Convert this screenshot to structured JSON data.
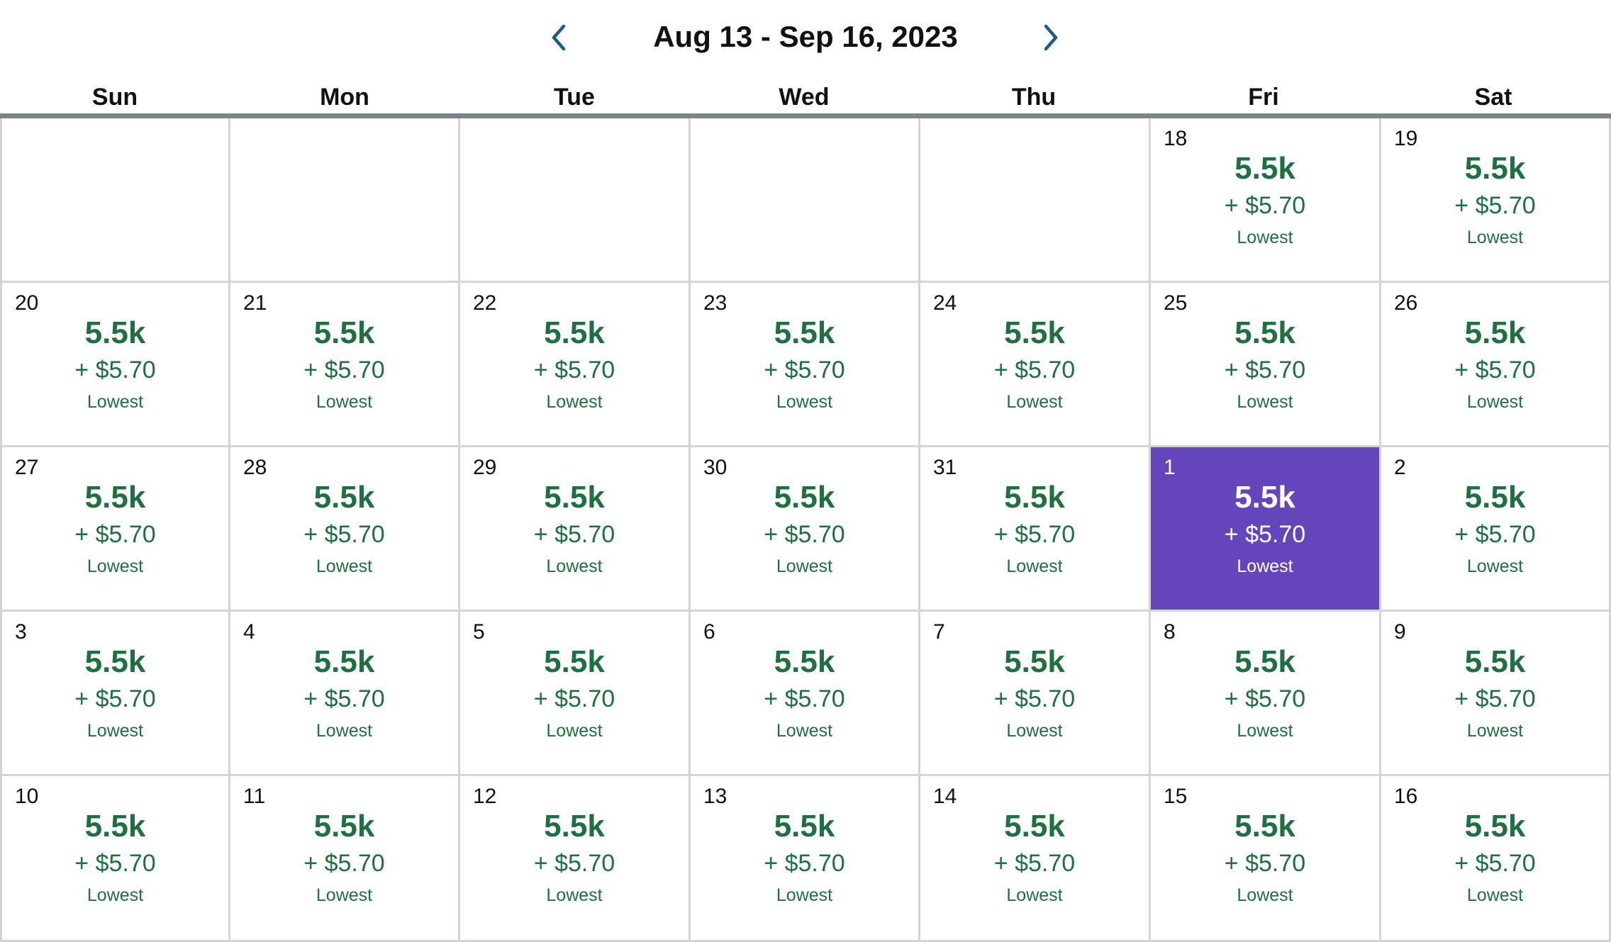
{
  "header": {
    "title": "Aug 13 - Sep 16, 2023",
    "prev_icon": "chevron-left-icon",
    "next_icon": "chevron-right-icon"
  },
  "weekdays": [
    "Sun",
    "Mon",
    "Tue",
    "Wed",
    "Thu",
    "Fri",
    "Sat"
  ],
  "colors": {
    "accent_blue": "#1a5f80",
    "price_green": "#1f7040",
    "selected_purple": "#6545bb",
    "divider_gray": "#7a858c"
  },
  "selected_day": "1",
  "weeks": [
    [
      null,
      null,
      null,
      null,
      null,
      {
        "day": "18",
        "points": "5.5k",
        "fee": "+ $5.70",
        "tag": "Lowest"
      },
      {
        "day": "19",
        "points": "5.5k",
        "fee": "+ $5.70",
        "tag": "Lowest"
      }
    ],
    [
      {
        "day": "20",
        "points": "5.5k",
        "fee": "+ $5.70",
        "tag": "Lowest"
      },
      {
        "day": "21",
        "points": "5.5k",
        "fee": "+ $5.70",
        "tag": "Lowest"
      },
      {
        "day": "22",
        "points": "5.5k",
        "fee": "+ $5.70",
        "tag": "Lowest"
      },
      {
        "day": "23",
        "points": "5.5k",
        "fee": "+ $5.70",
        "tag": "Lowest"
      },
      {
        "day": "24",
        "points": "5.5k",
        "fee": "+ $5.70",
        "tag": "Lowest"
      },
      {
        "day": "25",
        "points": "5.5k",
        "fee": "+ $5.70",
        "tag": "Lowest"
      },
      {
        "day": "26",
        "points": "5.5k",
        "fee": "+ $5.70",
        "tag": "Lowest"
      }
    ],
    [
      {
        "day": "27",
        "points": "5.5k",
        "fee": "+ $5.70",
        "tag": "Lowest"
      },
      {
        "day": "28",
        "points": "5.5k",
        "fee": "+ $5.70",
        "tag": "Lowest"
      },
      {
        "day": "29",
        "points": "5.5k",
        "fee": "+ $5.70",
        "tag": "Lowest"
      },
      {
        "day": "30",
        "points": "5.5k",
        "fee": "+ $5.70",
        "tag": "Lowest"
      },
      {
        "day": "31",
        "points": "5.5k",
        "fee": "+ $5.70",
        "tag": "Lowest"
      },
      {
        "day": "1",
        "points": "5.5k",
        "fee": "+ $5.70",
        "tag": "Lowest"
      },
      {
        "day": "2",
        "points": "5.5k",
        "fee": "+ $5.70",
        "tag": "Lowest"
      }
    ],
    [
      {
        "day": "3",
        "points": "5.5k",
        "fee": "+ $5.70",
        "tag": "Lowest"
      },
      {
        "day": "4",
        "points": "5.5k",
        "fee": "+ $5.70",
        "tag": "Lowest"
      },
      {
        "day": "5",
        "points": "5.5k",
        "fee": "+ $5.70",
        "tag": "Lowest"
      },
      {
        "day": "6",
        "points": "5.5k",
        "fee": "+ $5.70",
        "tag": "Lowest"
      },
      {
        "day": "7",
        "points": "5.5k",
        "fee": "+ $5.70",
        "tag": "Lowest"
      },
      {
        "day": "8",
        "points": "5.5k",
        "fee": "+ $5.70",
        "tag": "Lowest"
      },
      {
        "day": "9",
        "points": "5.5k",
        "fee": "+ $5.70",
        "tag": "Lowest"
      }
    ],
    [
      {
        "day": "10",
        "points": "5.5k",
        "fee": "+ $5.70",
        "tag": "Lowest"
      },
      {
        "day": "11",
        "points": "5.5k",
        "fee": "+ $5.70",
        "tag": "Lowest"
      },
      {
        "day": "12",
        "points": "5.5k",
        "fee": "+ $5.70",
        "tag": "Lowest"
      },
      {
        "day": "13",
        "points": "5.5k",
        "fee": "+ $5.70",
        "tag": "Lowest"
      },
      {
        "day": "14",
        "points": "5.5k",
        "fee": "+ $5.70",
        "tag": "Lowest"
      },
      {
        "day": "15",
        "points": "5.5k",
        "fee": "+ $5.70",
        "tag": "Lowest"
      },
      {
        "day": "16",
        "points": "5.5k",
        "fee": "+ $5.70",
        "tag": "Lowest"
      }
    ]
  ]
}
